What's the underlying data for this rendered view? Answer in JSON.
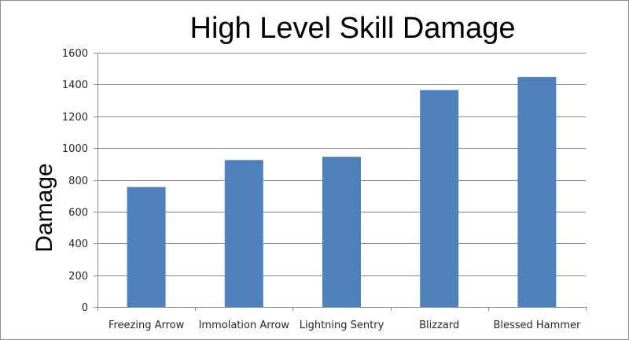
{
  "chart_data": {
    "type": "bar",
    "title": "High Level Skill Damage",
    "xlabel": "",
    "ylabel": "Damage",
    "categories": [
      "Freezing Arrow",
      "Immolation Arrow",
      "Lightning Sentry",
      "Blizzard",
      "Blessed Hammer"
    ],
    "series": [
      {
        "values": [
          755,
          925,
          945,
          1365,
          1447
        ]
      }
    ],
    "ylim": [
      0,
      1600
    ],
    "yticks": [
      0,
      200,
      400,
      600,
      800,
      1000,
      1200,
      1400,
      1600
    ],
    "grid": true,
    "legend": "none",
    "bar_color": "#4f81bd",
    "grid_color": "#898989"
  }
}
